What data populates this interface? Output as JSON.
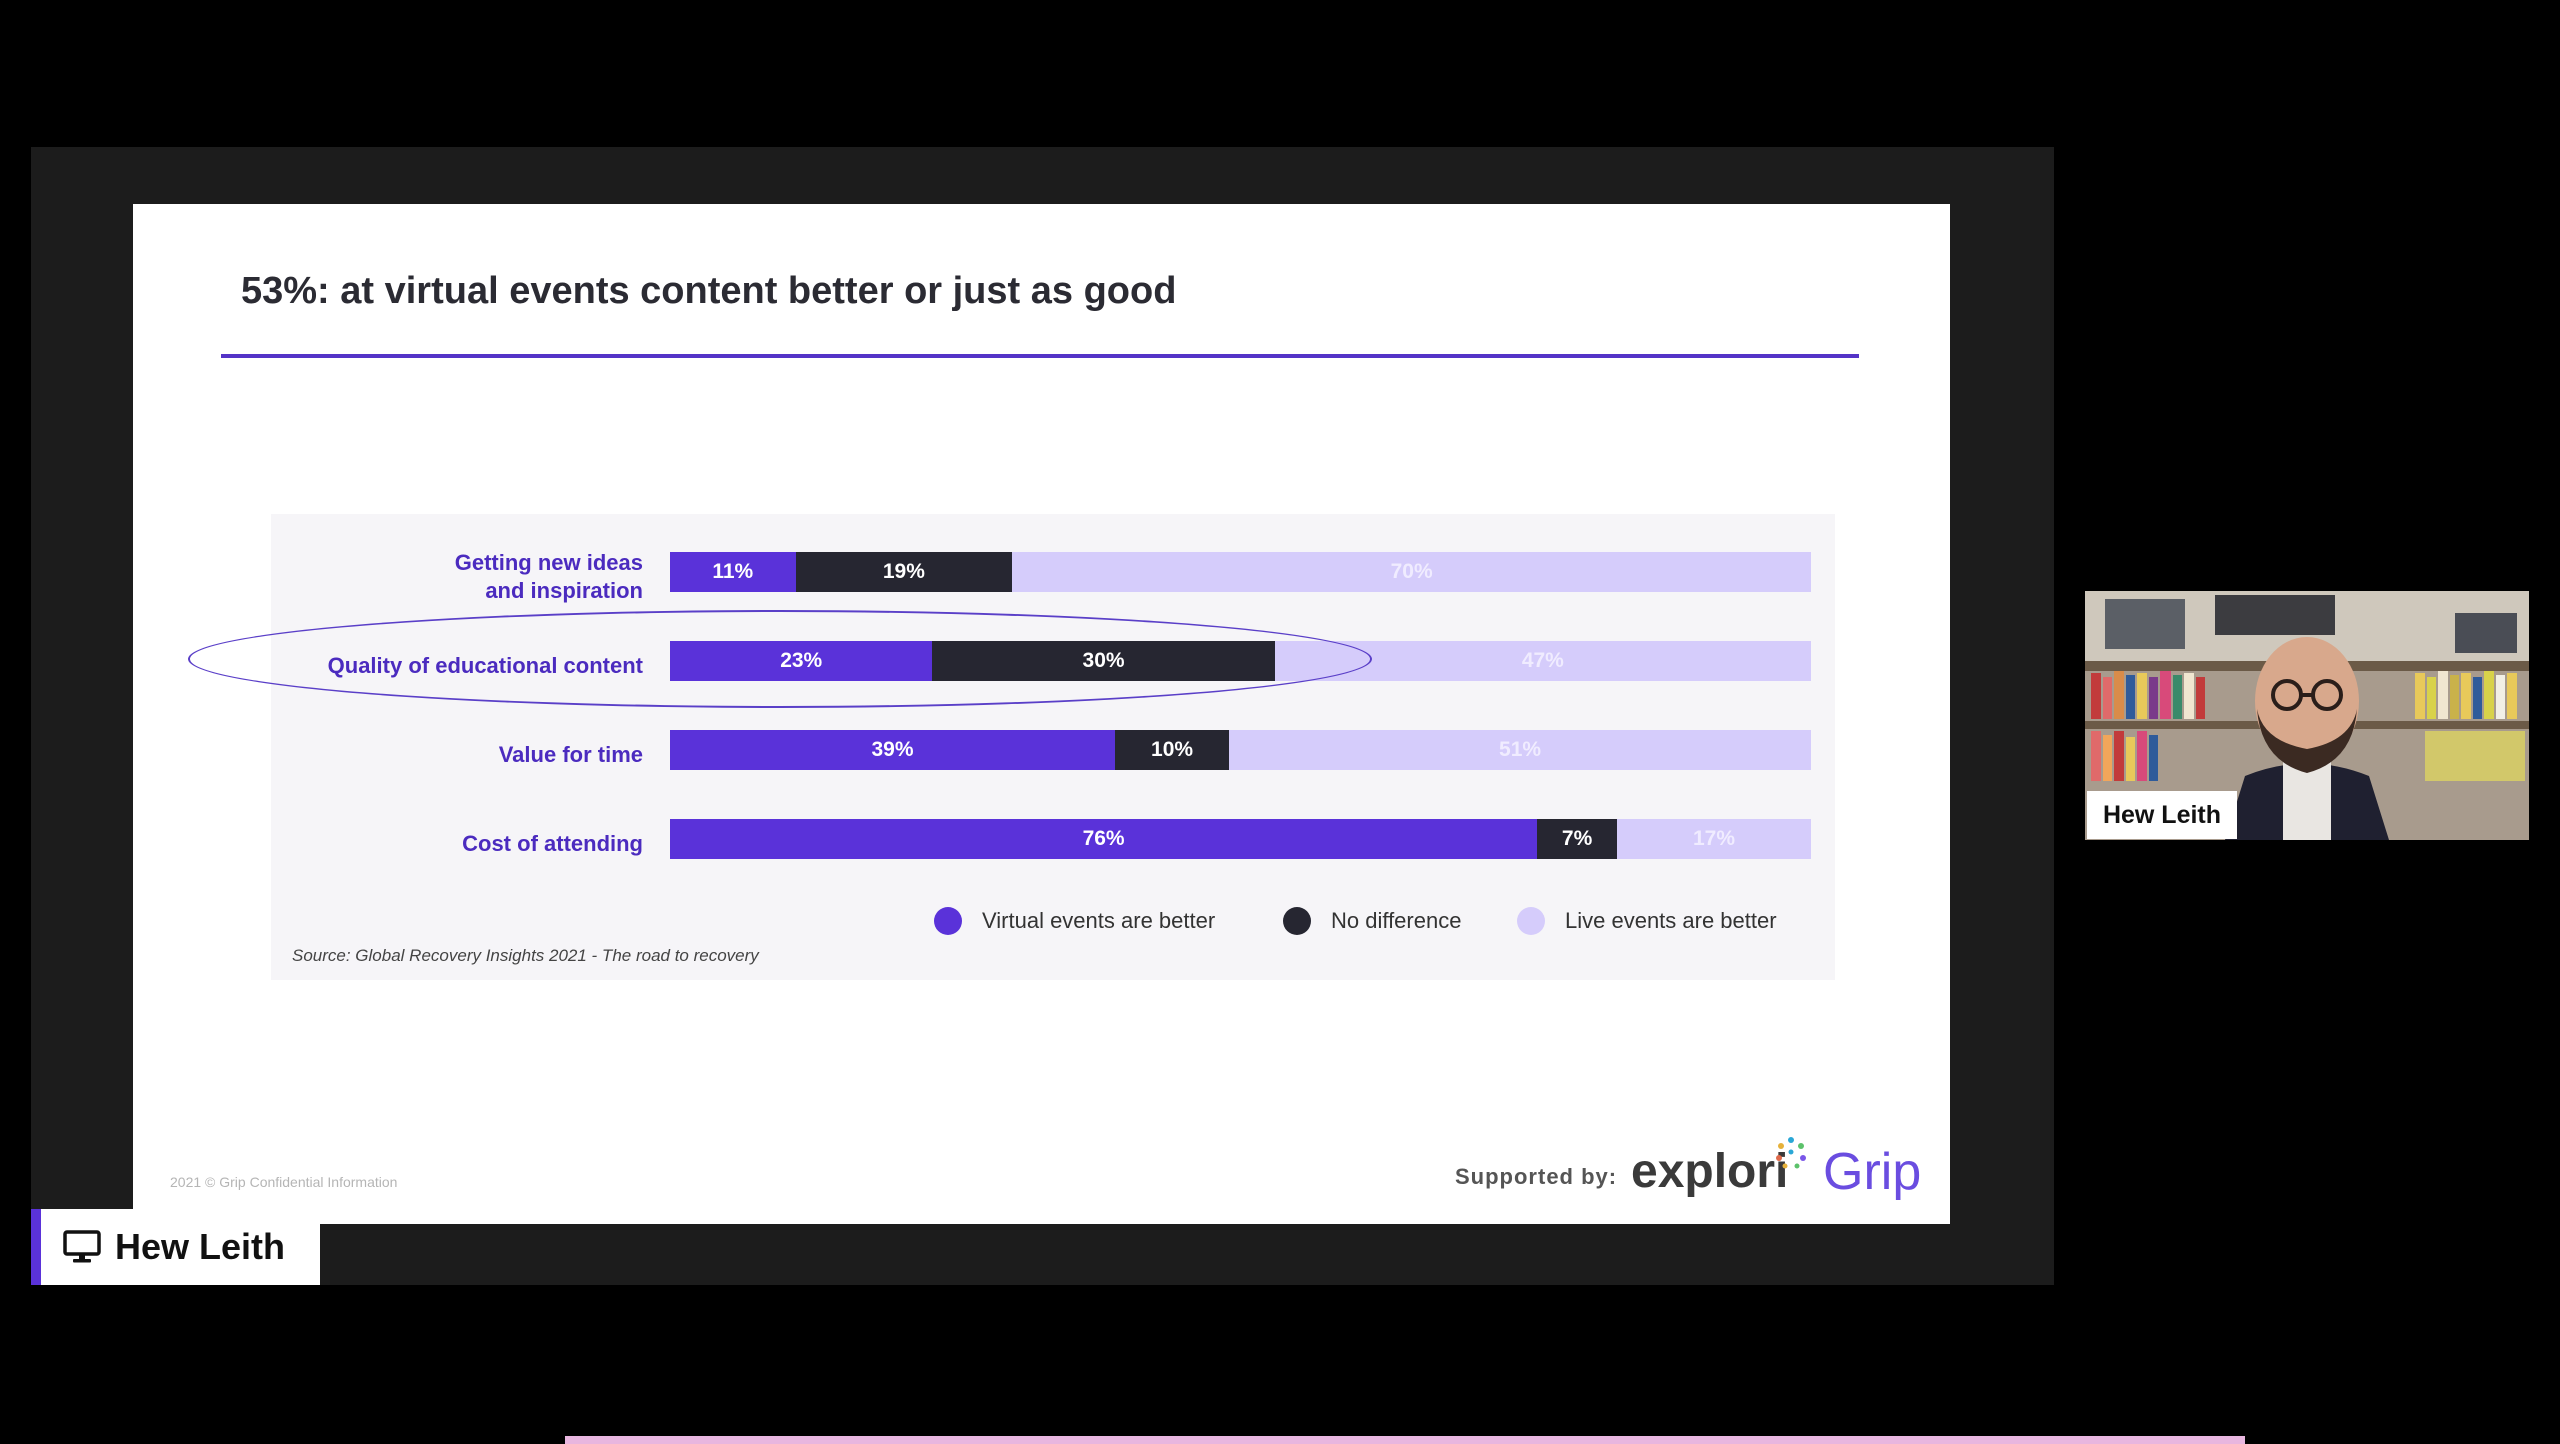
{
  "slide": {
    "title": "53%:  at virtual events content better or just as good",
    "source": "Source: Global Recovery Insights 2021 - The road to recovery",
    "copyright": "2021 © Grip Confidential Information",
    "supported_by": "Supported by:",
    "brand_explori": "explori",
    "brand_grip": "Grip"
  },
  "chart_data": {
    "type": "bar",
    "orientation": "horizontal",
    "stacked": true,
    "categories": [
      "Getting new ideas\nand inspiration",
      "Quality of educational content",
      "Value for time",
      "Cost of attending"
    ],
    "series": [
      {
        "name": "Virtual events are better",
        "values": [
          11,
          23,
          39,
          76
        ],
        "labels": [
          "11%",
          "23%",
          "39%",
          "76%"
        ],
        "color": "#5a32d9"
      },
      {
        "name": "No difference",
        "values": [
          19,
          30,
          10,
          7
        ],
        "labels": [
          "19%",
          "30%",
          "10%",
          "7%"
        ],
        "color": "#262631"
      },
      {
        "name": "Live events are better",
        "values": [
          70,
          47,
          51,
          17
        ],
        "labels": [
          "70%",
          "47%",
          "51%",
          "17%"
        ],
        "color": "#d5ccfb"
      }
    ],
    "highlighted_category": "Quality of educational content",
    "legend_position": "bottom-right"
  },
  "presenter": {
    "name": "Hew Leith",
    "icon": "monitor-icon"
  },
  "participant_video": {
    "name": "Hew Leith"
  },
  "colors": {
    "accent": "#5a32d9",
    "dark": "#262631",
    "light": "#d5ccfb"
  }
}
